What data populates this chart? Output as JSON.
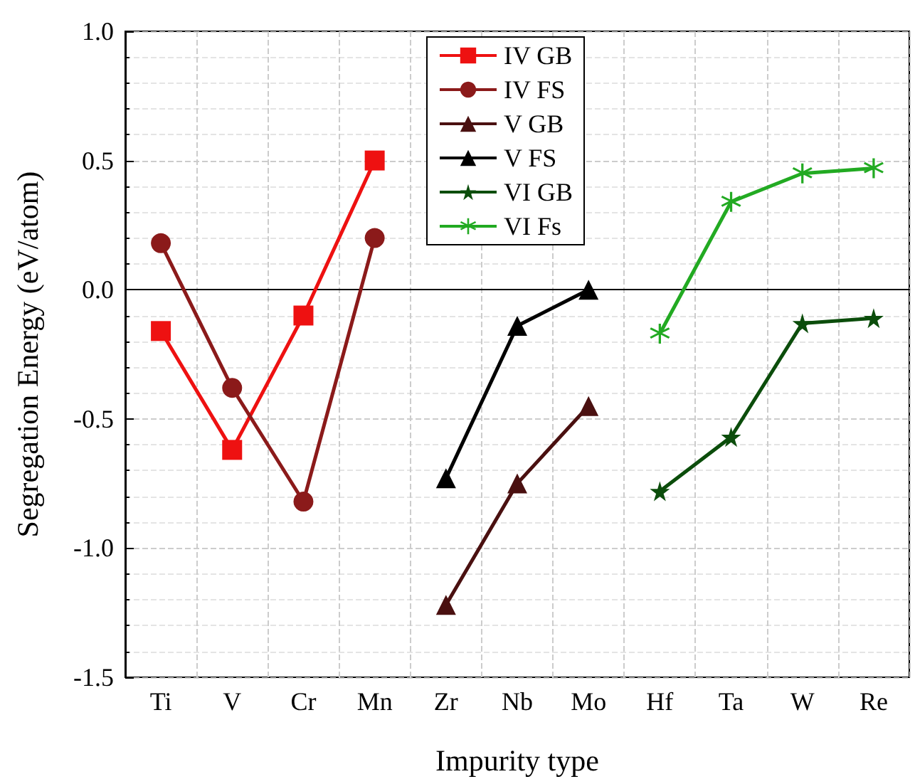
{
  "chart_data": {
    "type": "line",
    "xlabel": "Impurity type",
    "ylabel": "Segregation Energy (eV/atom)",
    "categories": [
      "Ti",
      "V",
      "Cr",
      "Mn",
      "Zr",
      "Nb",
      "Mo",
      "Hf",
      "Ta",
      "W",
      "Re"
    ],
    "ylim": [
      -1.5,
      1.0
    ],
    "yticks": [
      {
        "value": -1.5,
        "label": "-1.5"
      },
      {
        "value": -1.0,
        "label": "-1.0"
      },
      {
        "value": -0.5,
        "label": "-0.5"
      },
      {
        "value": 0,
        "label": "0.0"
      },
      {
        "value": 0.5,
        "label": "0.5"
      },
      {
        "value": 1.0,
        "label": "1.0"
      }
    ],
    "grid": true,
    "legend": "top",
    "line_style": "solid",
    "series": [
      {
        "name": "IV GB",
        "color": "#ee1111",
        "marker": "square",
        "values": [
          -0.16,
          -0.62,
          -0.1,
          0.5,
          null,
          null,
          null,
          null,
          null,
          null,
          null
        ]
      },
      {
        "name": "IV FS",
        "color": "#8b1a1a",
        "marker": "circle",
        "values": [
          0.18,
          -0.38,
          -0.82,
          0.2,
          null,
          null,
          null,
          null,
          null,
          null,
          null
        ]
      },
      {
        "name": "V GB",
        "color": "#4a1010",
        "marker": "triangle",
        "values": [
          null,
          null,
          null,
          null,
          -1.22,
          -0.75,
          -0.45,
          null,
          null,
          null,
          null
        ]
      },
      {
        "name": "V FS",
        "color": "#000000",
        "marker": "triangle",
        "values": [
          null,
          null,
          null,
          null,
          -0.73,
          -0.14,
          0.0,
          null,
          null,
          null,
          null
        ]
      },
      {
        "name": "VI GB",
        "color": "#0b4d0b",
        "marker": "star",
        "values": [
          null,
          null,
          null,
          null,
          null,
          null,
          null,
          -0.78,
          -0.57,
          -0.13,
          -0.11
        ]
      },
      {
        "name": "VI Fs",
        "color": "#22aa22",
        "marker": "cross",
        "values": [
          null,
          null,
          null,
          null,
          null,
          null,
          null,
          -0.17,
          0.34,
          0.45,
          0.47
        ]
      }
    ]
  }
}
